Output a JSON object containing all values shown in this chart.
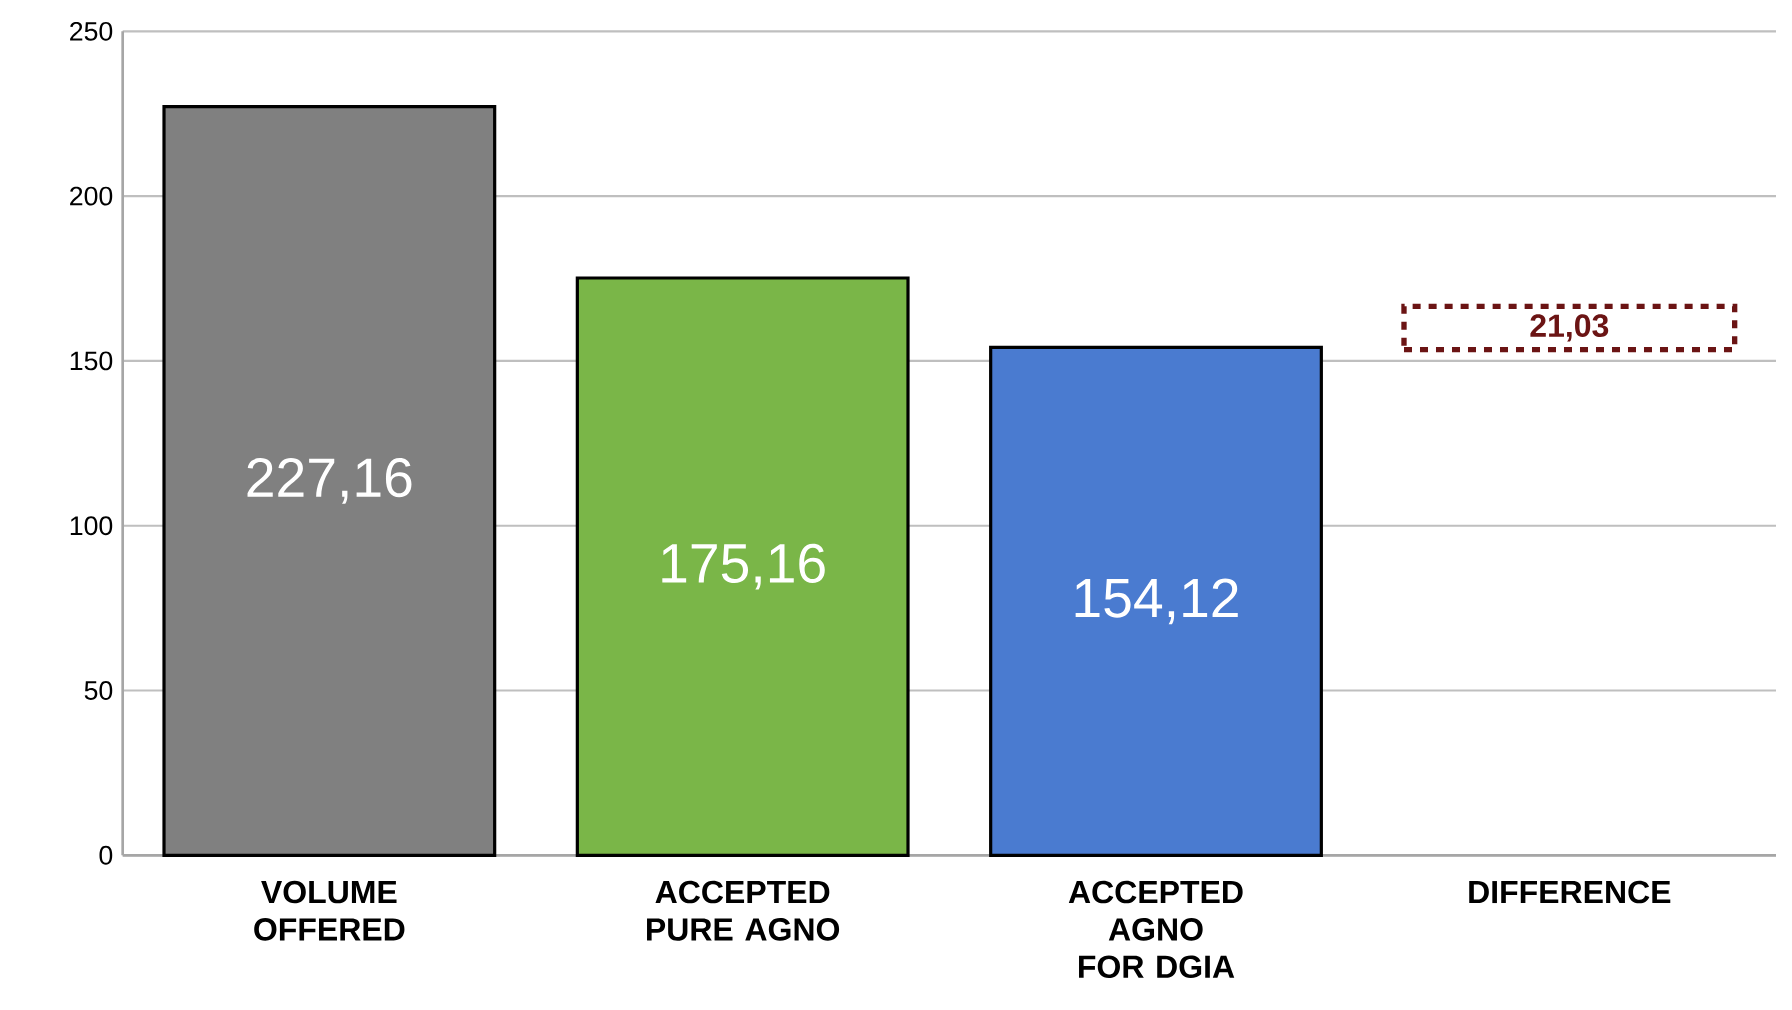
{
  "chart_data": {
    "type": "bar",
    "categories": [
      "VOLUME OFFERED",
      "ACCEPTED PURE AGNO",
      "ACCEPTED AGNO FOR DGIA",
      "DIFFERENCE"
    ],
    "values": [
      227.16,
      175.16,
      154.12,
      null
    ],
    "colors": [
      "#808080",
      "#7ab648",
      "#4a7bd0",
      "#6b1414"
    ],
    "value_labels": [
      "227,16",
      "175,16",
      "154,12",
      null
    ],
    "ylim": [
      0,
      250
    ],
    "yticks": [
      0,
      50,
      100,
      150,
      200,
      250
    ],
    "grid": "y",
    "annotations": [
      "21,03"
    ]
  }
}
